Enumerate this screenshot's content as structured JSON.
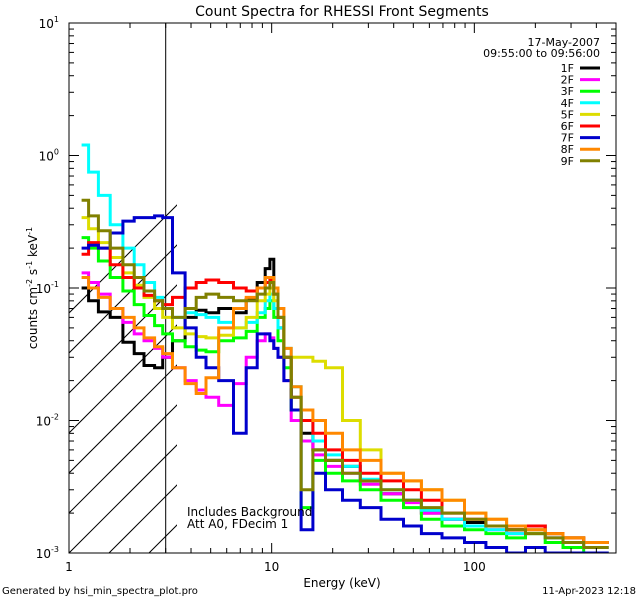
{
  "chart_data": {
    "type": "line",
    "title": "Count Spectra for RHESSI Front Segments",
    "xlabel": "Energy (keV)",
    "ylabel_parts": [
      "counts cm",
      "-2",
      " s",
      "-1",
      " keV",
      "-1"
    ],
    "xscale": "log",
    "yscale": "log",
    "xlim": [
      1,
      500
    ],
    "ylim": [
      0.001,
      10
    ],
    "x_tick_labels": [
      {
        "value": 1,
        "label": "1"
      },
      {
        "value": 10,
        "label": "10"
      },
      {
        "value": 100,
        "label": "100"
      }
    ],
    "y_tick_labels": [
      {
        "value": 10,
        "mantissa": "10",
        "exp": "1"
      },
      {
        "value": 1,
        "mantissa": "10",
        "exp": "0"
      },
      {
        "value": 0.1,
        "mantissa": "10",
        "exp": "-1"
      },
      {
        "value": 0.01,
        "mantissa": "10",
        "exp": "-2"
      },
      {
        "value": 0.001,
        "mantissa": "10",
        "exp": "-3"
      }
    ],
    "date": "17-May-2007",
    "time_range": "09:55:00 to 09:56:00",
    "hatched_region_keV": [
      1,
      3
    ],
    "annotations": [
      "Includes Background",
      "Att A0, FDecim 1"
    ],
    "legend_position": "top-right",
    "series": [
      {
        "name": "1F",
        "color": "#000000",
        "x": [
          1.2,
          1.3,
          1.5,
          1.7,
          2.0,
          2.2,
          2.5,
          2.8,
          3.0,
          3.5,
          4.0,
          4.5,
          5.0,
          6.0,
          7.0,
          8.0,
          9.0,
          9.6,
          10.0,
          10.5,
          11.0,
          12.0,
          13.0,
          15.0,
          17.0,
          20.0,
          25.0,
          30.0,
          40.0,
          50.0,
          60.0,
          80.0,
          100.0,
          130.0,
          160.0,
          200.0,
          250.0,
          300.0,
          400.0
        ],
        "values": [
          0.1,
          0.08,
          0.066,
          0.06,
          0.039,
          0.032,
          0.026,
          0.025,
          0.03,
          0.04,
          0.06,
          0.068,
          0.065,
          0.07,
          0.065,
          0.082,
          0.11,
          0.14,
          0.165,
          0.1,
          0.05,
          0.03,
          0.012,
          0.008,
          0.006,
          0.005,
          0.0045,
          0.0035,
          0.0028,
          0.0025,
          0.002,
          0.0018,
          0.0017,
          0.0016,
          0.0015,
          0.0016,
          0.0014,
          0.0013,
          0.0012
        ]
      },
      {
        "name": "2F",
        "color": "#ff00ff",
        "x": [
          1.2,
          1.3,
          1.5,
          1.7,
          2.0,
          2.2,
          2.5,
          2.8,
          3.0,
          3.5,
          4.0,
          4.5,
          5.0,
          6.0,
          7.0,
          8.0,
          9.0,
          9.6,
          10.0,
          10.5,
          11.0,
          12.0,
          13.0,
          15.0,
          17.0,
          20.0,
          25.0,
          30.0,
          40.0,
          50.0,
          60.0,
          80.0,
          100.0,
          130.0,
          160.0,
          200.0,
          250.0,
          300.0,
          400.0
        ],
        "values": [
          0.13,
          0.11,
          0.09,
          0.07,
          0.055,
          0.045,
          0.04,
          0.035,
          0.03,
          0.025,
          0.02,
          0.017,
          0.015,
          0.013,
          0.019,
          0.03,
          0.04,
          0.045,
          0.042,
          0.035,
          0.03,
          0.02,
          0.01,
          0.007,
          0.0055,
          0.0045,
          0.004,
          0.0033,
          0.0028,
          0.0024,
          0.002,
          0.0018,
          0.0016,
          0.0015,
          0.0014,
          0.0015,
          0.0013,
          0.0012,
          0.0011
        ]
      },
      {
        "name": "3F",
        "color": "#00ff00",
        "x": [
          1.2,
          1.3,
          1.5,
          1.7,
          2.0,
          2.2,
          2.5,
          2.8,
          3.0,
          3.5,
          4.0,
          4.5,
          5.0,
          6.0,
          7.0,
          8.0,
          9.0,
          9.6,
          10.0,
          10.5,
          11.0,
          12.0,
          13.0,
          15.0,
          17.0,
          20.0,
          25.0,
          30.0,
          40.0,
          50.0,
          60.0,
          80.0,
          100.0,
          130.0,
          160.0,
          200.0,
          250.0,
          300.0,
          400.0
        ],
        "values": [
          0.24,
          0.2,
          0.16,
          0.12,
          0.095,
          0.075,
          0.062,
          0.052,
          0.045,
          0.04,
          0.036,
          0.034,
          0.033,
          0.04,
          0.042,
          0.047,
          0.06,
          0.07,
          0.08,
          0.06,
          0.04,
          0.025,
          0.012,
          0.0022,
          0.005,
          0.004,
          0.0035,
          0.003,
          0.0025,
          0.0022,
          0.0018,
          0.0016,
          0.0015,
          0.0014,
          0.0013,
          0.0014,
          0.0012,
          0.0011,
          0.001
        ]
      },
      {
        "name": "4F",
        "color": "#00ffff",
        "x": [
          1.2,
          1.3,
          1.5,
          1.7,
          2.0,
          2.2,
          2.5,
          2.8,
          3.0,
          3.5,
          4.0,
          4.5,
          5.0,
          6.0,
          7.0,
          8.0,
          9.0,
          9.6,
          10.0,
          10.5,
          11.0,
          12.0,
          13.0,
          15.0,
          17.0,
          20.0,
          25.0,
          30.0,
          40.0,
          50.0,
          60.0,
          80.0,
          100.0,
          130.0,
          160.0,
          200.0,
          250.0,
          300.0,
          400.0
        ],
        "values": [
          1.2,
          0.75,
          0.5,
          0.3,
          0.2,
          0.15,
          0.11,
          0.085,
          0.07,
          0.06,
          0.065,
          0.063,
          0.06,
          0.055,
          0.05,
          0.055,
          0.065,
          0.08,
          0.09,
          0.07,
          0.05,
          0.035,
          0.018,
          0.01,
          0.007,
          0.0055,
          0.0045,
          0.0036,
          0.003,
          0.0025,
          0.0021,
          0.0018,
          0.0016,
          0.0015,
          0.0014,
          0.0015,
          0.0013,
          0.0012,
          0.0011
        ]
      },
      {
        "name": "5F",
        "color": "#dddd00",
        "x": [
          1.2,
          1.3,
          1.5,
          1.7,
          2.0,
          2.2,
          2.5,
          2.8,
          3.0,
          3.5,
          4.0,
          4.5,
          5.0,
          6.0,
          7.0,
          8.0,
          9.0,
          9.6,
          10.0,
          10.5,
          11.0,
          12.0,
          13.0,
          15.0,
          17.0,
          20.0,
          25.0,
          30.0,
          40.0,
          50.0,
          60.0,
          80.0,
          100.0,
          130.0,
          160.0,
          200.0,
          250.0,
          300.0,
          400.0
        ],
        "values": [
          0.34,
          0.28,
          0.22,
          0.17,
          0.13,
          0.105,
          0.085,
          0.07,
          0.06,
          0.05,
          0.045,
          0.043,
          0.042,
          0.044,
          0.05,
          0.06,
          0.08,
          0.09,
          0.1,
          0.08,
          0.06,
          0.03,
          0.03,
          0.03,
          0.028,
          0.025,
          0.01,
          0.006,
          0.004,
          0.0035,
          0.003,
          0.0025,
          0.002,
          0.0018,
          0.0016,
          0.0015,
          0.0014,
          0.0013,
          0.0012
        ]
      },
      {
        "name": "6F",
        "color": "#ff0000",
        "x": [
          1.2,
          1.3,
          1.5,
          1.7,
          2.0,
          2.2,
          2.5,
          2.8,
          3.0,
          3.5,
          4.0,
          4.5,
          5.0,
          6.0,
          7.0,
          8.0,
          9.0,
          9.6,
          10.0,
          10.5,
          11.0,
          12.0,
          13.0,
          15.0,
          17.0,
          20.0,
          25.0,
          30.0,
          40.0,
          50.0,
          60.0,
          80.0,
          100.0,
          130.0,
          160.0,
          200.0,
          250.0,
          300.0,
          400.0
        ],
        "values": [
          0.18,
          0.22,
          0.2,
          0.15,
          0.12,
          0.1,
          0.088,
          0.08,
          0.075,
          0.085,
          0.1,
          0.11,
          0.115,
          0.11,
          0.1,
          0.095,
          0.1,
          0.11,
          0.115,
          0.09,
          0.06,
          0.03,
          0.015,
          0.01,
          0.008,
          0.006,
          0.005,
          0.004,
          0.0035,
          0.003,
          0.0025,
          0.002,
          0.0018,
          0.0016,
          0.0015,
          0.0016,
          0.0014,
          0.0013,
          0.0012
        ]
      },
      {
        "name": "7F",
        "color": "#0000cc",
        "x": [
          1.2,
          1.3,
          1.5,
          1.7,
          2.0,
          2.2,
          2.5,
          2.8,
          3.0,
          3.5,
          4.0,
          4.5,
          5.0,
          6.0,
          7.0,
          8.0,
          9.0,
          9.6,
          10.0,
          10.5,
          11.0,
          12.0,
          13.0,
          15.0,
          17.0,
          20.0,
          25.0,
          30.0,
          40.0,
          50.0,
          60.0,
          80.0,
          100.0,
          130.0,
          160.0,
          200.0,
          250.0,
          300.0,
          400.0
        ],
        "values": [
          0.2,
          0.21,
          0.2,
          0.26,
          0.32,
          0.34,
          0.34,
          0.35,
          0.34,
          0.13,
          0.05,
          0.03,
          0.025,
          0.02,
          0.008,
          0.025,
          0.045,
          0.045,
          0.04,
          0.035,
          0.03,
          0.02,
          0.012,
          0.0015,
          0.004,
          0.003,
          0.0025,
          0.0022,
          0.0018,
          0.0016,
          0.0014,
          0.0013,
          0.0012,
          0.0011,
          0.001,
          0.0011,
          0.001,
          0.001,
          0.001
        ]
      },
      {
        "name": "8F",
        "color": "#ff8800",
        "x": [
          1.2,
          1.3,
          1.5,
          1.7,
          2.0,
          2.2,
          2.5,
          2.8,
          3.0,
          3.5,
          4.0,
          4.5,
          5.0,
          6.0,
          7.0,
          8.0,
          9.0,
          9.6,
          10.0,
          10.5,
          11.0,
          12.0,
          13.0,
          15.0,
          17.0,
          20.0,
          25.0,
          30.0,
          40.0,
          50.0,
          60.0,
          80.0,
          100.0,
          130.0,
          160.0,
          200.0,
          250.0,
          300.0,
          400.0
        ],
        "values": [
          0.12,
          0.1,
          0.085,
          0.07,
          0.06,
          0.05,
          0.042,
          0.036,
          0.032,
          0.025,
          0.019,
          0.016,
          0.021,
          0.05,
          0.07,
          0.085,
          0.1,
          0.12,
          0.12,
          0.1,
          0.07,
          0.035,
          0.018,
          0.012,
          0.01,
          0.008,
          0.006,
          0.005,
          0.004,
          0.0035,
          0.003,
          0.0025,
          0.002,
          0.0018,
          0.0016,
          0.0015,
          0.0014,
          0.0013,
          0.0012
        ]
      },
      {
        "name": "9F",
        "color": "#808000",
        "x": [
          1.2,
          1.3,
          1.5,
          1.7,
          2.0,
          2.2,
          2.5,
          2.8,
          3.0,
          3.5,
          4.0,
          4.5,
          5.0,
          6.0,
          7.0,
          8.0,
          9.0,
          9.6,
          10.0,
          10.5,
          11.0,
          12.0,
          13.0,
          15.0,
          17.0,
          20.0,
          25.0,
          30.0,
          40.0,
          50.0,
          60.0,
          80.0,
          100.0,
          130.0,
          160.0,
          200.0,
          250.0,
          300.0,
          400.0
        ],
        "values": [
          0.46,
          0.35,
          0.27,
          0.2,
          0.15,
          0.12,
          0.095,
          0.08,
          0.07,
          0.06,
          0.07,
          0.085,
          0.09,
          0.085,
          0.08,
          0.08,
          0.09,
          0.1,
          0.11,
          0.09,
          0.06,
          0.03,
          0.015,
          0.003,
          0.006,
          0.005,
          0.004,
          0.0035,
          0.003,
          0.0025,
          0.0022,
          0.002,
          0.0018,
          0.0016,
          0.0015,
          0.0014,
          0.0013,
          0.0012,
          0.0011
        ]
      }
    ]
  },
  "footer": {
    "left": "Generated by hsi_min_spectra_plot.pro",
    "right": "11-Apr-2023 12:18"
  }
}
